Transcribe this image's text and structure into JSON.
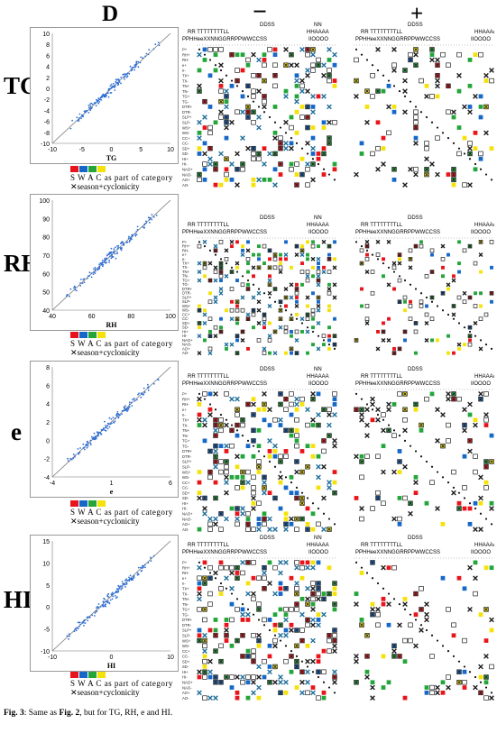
{
  "headers": {
    "d": "D",
    "minus": "−",
    "plus": "+"
  },
  "colors": {
    "S": "#e8141a",
    "W": "#1668c8",
    "A": "#23a53a",
    "C": "#f5e20a",
    "cross": "#1f6e9a",
    "point": "#2e6fd6"
  },
  "legend": {
    "letters": "S  W  A  C",
    "category_text": "as part of category",
    "cross_symbol": "✕",
    "cross_text": "season+cyclonicity"
  },
  "matrix_header": {
    "row1_left": "DDSS",
    "row1_mid": "NN",
    "row1_right": "DDSS",
    "row2_left": "RR  TTTTTTTTLL",
    "row2_mid": "HHAAAA",
    "row3": "PPHHeeXXNNGGRRPPWWCCSS",
    "row3_tail": "IIOOOO"
  },
  "row_labels": [
    "P+",
    "RH+",
    "RH-",
    "e+",
    "e-",
    "TX+",
    "TX-",
    "TN+",
    "TN-",
    "TG+",
    "TG-",
    "DTR+",
    "DTR-",
    "SLP+",
    "SLP-",
    "WS+",
    "WS-",
    "CC+",
    "CC-",
    "SD+",
    "SD-",
    "HI+",
    "HI-",
    "NAO+",
    "NAO-",
    "AO+",
    "AO-"
  ],
  "panels": [
    {
      "label": "TG",
      "axis_label": "TG",
      "xticks": [
        "-10",
        "-5",
        "0",
        "5",
        "10"
      ],
      "yticks": [
        "10",
        "8",
        "6",
        "4",
        "2",
        "0",
        "-2",
        "-4",
        "-6",
        "-8",
        "-10"
      ]
    },
    {
      "label": "RH",
      "axis_label": "RH",
      "xticks": [
        "40",
        "60",
        "80",
        "100"
      ],
      "yticks": [
        "100",
        "90",
        "80",
        "70",
        "60",
        "50",
        "40"
      ]
    },
    {
      "label": "e",
      "axis_label": "e",
      "xticks": [
        "-4",
        "1",
        "6"
      ],
      "yticks": [
        "8",
        "6",
        "4",
        "2",
        "0",
        "-2",
        "-4"
      ]
    },
    {
      "label": "HI",
      "axis_label": "HI",
      "xticks": [
        "-10",
        "0",
        "10"
      ],
      "yticks": [
        "15",
        "10",
        "5",
        "0",
        "-5",
        "-10"
      ]
    }
  ],
  "caption": {
    "prefix": "Fig. 3",
    "text1": ": Same as ",
    "ref": "Fig. 2",
    "text2": ", but for TG, RH, e and HI."
  }
}
